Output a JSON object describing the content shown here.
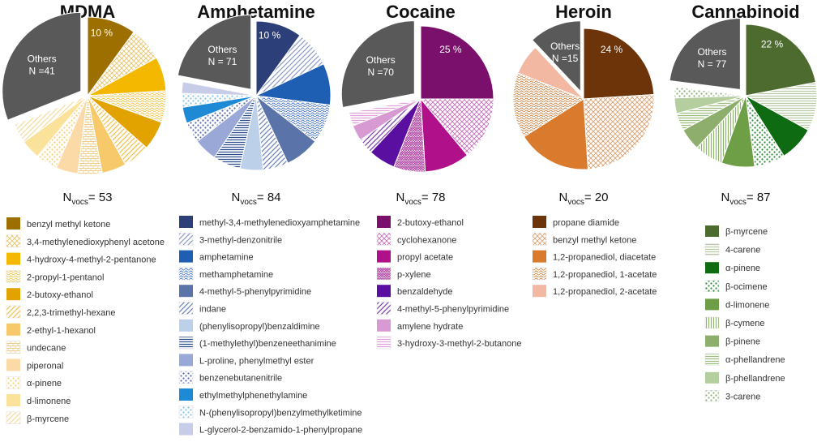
{
  "chart_data": [
    {
      "type": "pie",
      "title": "MDMA",
      "n_vocs_prefix": "N",
      "n_vocs_sub": "vocs",
      "n_vocs_value": "= 53",
      "others": {
        "label": "Others",
        "count_text": "N =41",
        "share": 0.32
      },
      "slices": [
        {
          "name": "benzyl methyl ketone",
          "share": 0.1,
          "label": "10 %",
          "color": "#9c6f00",
          "pattern": "solid"
        },
        {
          "name": "3,4-methylenedioxyphenyl acetone",
          "share": 0.07,
          "color": "#e8c46a",
          "pattern": "check"
        },
        {
          "name": "4-hydroxy-4-methyl-2-pentanone",
          "share": 0.07,
          "color": "#f5b800",
          "pattern": "solid"
        },
        {
          "name": "2-propyl-1-pentanol",
          "share": 0.065,
          "color": "#f2c64a",
          "pattern": "wave"
        },
        {
          "name": "2-butoxy-ethanol",
          "share": 0.06,
          "color": "#e2a300",
          "pattern": "solid"
        },
        {
          "name": "2,2,3-trimethyl-hexane",
          "share": 0.055,
          "color": "#f0c24c",
          "pattern": "diag"
        },
        {
          "name": "2-ethyl-1-hexanol",
          "share": 0.05,
          "color": "#f7c96b",
          "pattern": "solid"
        },
        {
          "name": "undecane",
          "share": 0.05,
          "color": "#f0cf8a",
          "pattern": "brick"
        },
        {
          "name": "piperonal",
          "share": 0.045,
          "color": "#fbdaa8",
          "pattern": "solid"
        },
        {
          "name": "α-pinene",
          "share": 0.045,
          "color": "#f5d072",
          "pattern": "dots"
        },
        {
          "name": "d-limonene",
          "share": 0.04,
          "color": "#fbe29a",
          "pattern": "solid"
        },
        {
          "name": "β-myrcene",
          "share": 0.04,
          "color": "#f6dca0",
          "pattern": "diag"
        }
      ]
    },
    {
      "type": "pie",
      "title": "Amphetamine",
      "n_vocs_prefix": "N",
      "n_vocs_sub": "vocs",
      "n_vocs_value": "= 84",
      "others": {
        "label": "Others",
        "count_text": "N = 71",
        "share": 0.23
      },
      "slices": [
        {
          "name": "methyl-3,4-methylenedioxyamphetamine",
          "share": 0.1,
          "label": "10 %",
          "color": "#2d3f78",
          "pattern": "solid"
        },
        {
          "name": "3-methyl-denzonitrile",
          "share": 0.08,
          "color": "#8e9ac2",
          "pattern": "diag"
        },
        {
          "name": "amphetamine",
          "share": 0.09,
          "color": "#1f5fb3",
          "pattern": "solid"
        },
        {
          "name": "methamphetamine",
          "share": 0.085,
          "color": "#4a78c4",
          "pattern": "wave"
        },
        {
          "name": "4-methyl-5-phenylpyrimidine",
          "share": 0.075,
          "color": "#5a73a8",
          "pattern": "solid"
        },
        {
          "name": "indane",
          "share": 0.055,
          "color": "#6c82b5",
          "pattern": "diag"
        },
        {
          "name": "(phenylisopropyl)benzaldimine",
          "share": 0.05,
          "color": "#bcd0ea",
          "pattern": "solid"
        },
        {
          "name": "(1-methylethyl)benzeneethanimine",
          "share": 0.06,
          "color": "#2c4c8c",
          "pattern": "hlines"
        },
        {
          "name": "L-proline, phenylmethyl ester",
          "share": 0.05,
          "color": "#9aa8d8",
          "pattern": "solid"
        },
        {
          "name": "benzenebutanenitrile",
          "share": 0.045,
          "color": "#5567a8",
          "pattern": "dots"
        },
        {
          "name": "ethylmethylphenethylamine",
          "share": 0.035,
          "color": "#1e8ad6",
          "pattern": "solid"
        },
        {
          "name": "N-(phenylisopropyl)benzylmethylketimine",
          "share": 0.03,
          "color": "#86c4e8",
          "pattern": "dots"
        },
        {
          "name": "L-glycerol-2-benzamido-1-phenylpropane",
          "share": 0.025,
          "color": "#c7cde8",
          "pattern": "solid"
        }
      ]
    },
    {
      "type": "pie",
      "title": "Cocaine",
      "n_vocs_prefix": "N",
      "n_vocs_sub": "vocs",
      "n_vocs_value": "= 78",
      "others": {
        "label": "Others",
        "count_text": "N =70",
        "share": 0.28
      },
      "slices": [
        {
          "name": "2-butoxy-ethanol",
          "share": 0.25,
          "label": "25 %",
          "color": "#7a0f6c",
          "pattern": "solid"
        },
        {
          "name": "cyclohexanone",
          "share": 0.14,
          "color": "#c46bb8",
          "pattern": "check"
        },
        {
          "name": "propyl acetate",
          "share": 0.1,
          "color": "#b0108a",
          "pattern": "solid"
        },
        {
          "name": "p-xylene",
          "share": 0.07,
          "color": "#b23fa3",
          "pattern": "zigzag"
        },
        {
          "name": "benzaldehyde",
          "share": 0.06,
          "color": "#5a0fa0",
          "pattern": "solid"
        },
        {
          "name": "4-methyl-5-phenylpyrimidine",
          "share": 0.035,
          "color": "#7a3fa8",
          "pattern": "diag"
        },
        {
          "name": "amylene hydrate",
          "share": 0.035,
          "color": "#d79ad2",
          "pattern": "solid"
        },
        {
          "name": "3-hydroxy-3-methyl-2-butanone",
          "share": 0.03,
          "color": "#e0a0d8",
          "pattern": "hlines"
        }
      ]
    },
    {
      "type": "pie",
      "title": "Heroin",
      "n_vocs_prefix": "N",
      "n_vocs_sub": "vocs",
      "n_vocs_value": "= 20",
      "others": {
        "label": "Others",
        "count_text": "N =15",
        "share": 0.12
      },
      "slices": [
        {
          "name": "propane diamide",
          "share": 0.24,
          "label": "24 %",
          "color": "#6e3409",
          "pattern": "solid"
        },
        {
          "name": "benzyl methyl ketone",
          "share": 0.25,
          "color": "#d9a070",
          "pattern": "check"
        },
        {
          "name": "1,2-propanediol, diacetate",
          "share": 0.17,
          "color": "#d97a2c",
          "pattern": "solid"
        },
        {
          "name": "1,2-propanediol, 1-acetate",
          "share": 0.15,
          "color": "#c8874a",
          "pattern": "wave"
        },
        {
          "name": "1,2-propanediol, 2-acetate",
          "share": 0.07,
          "color": "#f2b8a2",
          "pattern": "solid"
        }
      ]
    },
    {
      "type": "pie",
      "title": "Cannabinoid",
      "n_vocs_prefix": "N",
      "n_vocs_sub": "vocs",
      "n_vocs_value": "= 87",
      "others": {
        "label": "Others",
        "count_text": "N = 77",
        "share": 0.23
      },
      "slices": [
        {
          "name": "β-myrcene",
          "share": 0.22,
          "label": "22 %",
          "color": "#4e6b2f",
          "pattern": "solid"
        },
        {
          "name": "4-carene",
          "share": 0.11,
          "color": "#b9c8a5",
          "pattern": "hlines"
        },
        {
          "name": "α-pinene",
          "share": 0.08,
          "color": "#0f6b12",
          "pattern": "solid"
        },
        {
          "name": "β-ocimene",
          "share": 0.07,
          "color": "#2e8a3a",
          "pattern": "dots"
        },
        {
          "name": "d-limonene",
          "share": 0.075,
          "color": "#6e9e46",
          "pattern": "solid"
        },
        {
          "name": "β-cymene",
          "share": 0.065,
          "color": "#8fb56a",
          "pattern": "vlines"
        },
        {
          "name": "β-pinene",
          "share": 0.05,
          "color": "#8dae6c",
          "pattern": "solid"
        },
        {
          "name": "α-phellandrene",
          "share": 0.04,
          "color": "#9cbc7c",
          "pattern": "hlines"
        },
        {
          "name": "β-phellandrene",
          "share": 0.035,
          "color": "#b5cea0",
          "pattern": "solid"
        },
        {
          "name": "3-carene",
          "share": 0.025,
          "color": "#8fb07a",
          "pattern": "dots"
        }
      ]
    }
  ]
}
